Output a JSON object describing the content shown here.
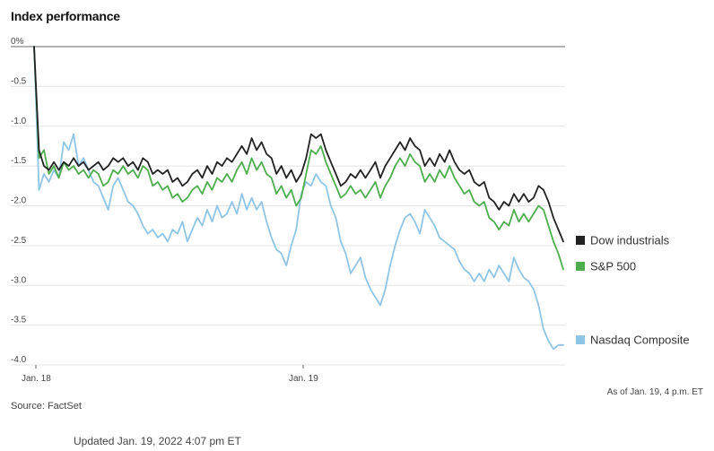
{
  "page": {
    "source": "Source: FactSet",
    "as_of": "As of Jan. 19, 4 p.m. ET",
    "updated": "Updated Jan. 19, 2022 4:07 pm ET"
  },
  "chart_data": {
    "type": "line",
    "title": "Index performance",
    "xlabel": "",
    "ylabel": "",
    "x_ticks": [
      "Jan. 18",
      "Jan. 19"
    ],
    "y_ticks": [
      "0%",
      "-0.5",
      "-1.0",
      "-1.5",
      "-2.0",
      "-2.5",
      "-3.0",
      "-3.5",
      "-4.0"
    ],
    "ylim": [
      -4.0,
      0
    ],
    "grid": true,
    "legend": "right, at line ends",
    "series": [
      {
        "name": "Dow industrials",
        "color": "#222222",
        "values": [
          0,
          -1.3,
          -1.5,
          -1.55,
          -1.45,
          -1.55,
          -1.45,
          -1.5,
          -1.4,
          -1.5,
          -1.45,
          -1.55,
          -1.5,
          -1.45,
          -1.55,
          -1.5,
          -1.4,
          -1.45,
          -1.4,
          -1.5,
          -1.45,
          -1.55,
          -1.4,
          -1.45,
          -1.6,
          -1.55,
          -1.6,
          -1.55,
          -1.7,
          -1.65,
          -1.75,
          -1.7,
          -1.6,
          -1.55,
          -1.65,
          -1.5,
          -1.6,
          -1.45,
          -1.5,
          -1.4,
          -1.45,
          -1.35,
          -1.25,
          -1.35,
          -1.15,
          -1.3,
          -1.2,
          -1.35,
          -1.4,
          -1.6,
          -1.5,
          -1.65,
          -1.55,
          -1.7,
          -1.6,
          -1.4,
          -1.1,
          -1.15,
          -1.1,
          -1.3,
          -1.45,
          -1.6,
          -1.75,
          -1.7,
          -1.6,
          -1.65,
          -1.55,
          -1.65,
          -1.55,
          -1.45,
          -1.65,
          -1.5,
          -1.4,
          -1.3,
          -1.2,
          -1.3,
          -1.15,
          -1.25,
          -1.3,
          -1.5,
          -1.4,
          -1.5,
          -1.35,
          -1.45,
          -1.3,
          -1.45,
          -1.55,
          -1.6,
          -1.55,
          -1.7,
          -1.75,
          -1.7,
          -1.9,
          -1.95,
          -2.05,
          -1.95,
          -2.0,
          -1.85,
          -1.95,
          -1.85,
          -1.95,
          -1.9,
          -1.75,
          -1.8,
          -1.95,
          -2.15,
          -2.3,
          -2.45
        ]
      },
      {
        "name": "S&P 500",
        "color": "#4cae4c",
        "values": [
          0,
          -1.4,
          -1.3,
          -1.6,
          -1.5,
          -1.65,
          -1.45,
          -1.55,
          -1.5,
          -1.6,
          -1.55,
          -1.65,
          -1.55,
          -1.6,
          -1.75,
          -1.7,
          -1.55,
          -1.6,
          -1.5,
          -1.6,
          -1.55,
          -1.65,
          -1.5,
          -1.55,
          -1.75,
          -1.7,
          -1.8,
          -1.75,
          -1.9,
          -1.85,
          -1.95,
          -1.9,
          -1.8,
          -1.75,
          -1.85,
          -1.7,
          -1.8,
          -1.65,
          -1.7,
          -1.6,
          -1.7,
          -1.55,
          -1.45,
          -1.6,
          -1.4,
          -1.55,
          -1.45,
          -1.6,
          -1.65,
          -1.85,
          -1.75,
          -1.9,
          -1.8,
          -2.0,
          -1.9,
          -1.6,
          -1.3,
          -1.35,
          -1.25,
          -1.45,
          -1.6,
          -1.75,
          -1.9,
          -1.85,
          -1.75,
          -1.85,
          -1.8,
          -1.9,
          -1.8,
          -1.7,
          -1.9,
          -1.75,
          -1.65,
          -1.5,
          -1.4,
          -1.5,
          -1.35,
          -1.45,
          -1.5,
          -1.7,
          -1.6,
          -1.7,
          -1.55,
          -1.65,
          -1.5,
          -1.65,
          -1.75,
          -1.85,
          -1.8,
          -1.95,
          -2.0,
          -1.95,
          -2.15,
          -2.2,
          -2.3,
          -2.2,
          -2.25,
          -2.05,
          -2.2,
          -2.1,
          -2.2,
          -2.1,
          -2.0,
          -2.05,
          -2.25,
          -2.45,
          -2.6,
          -2.8
        ]
      },
      {
        "name": "Nasdaq Composite",
        "color": "#8ec5e6",
        "values": [
          0,
          -1.8,
          -1.6,
          -1.7,
          -1.55,
          -1.65,
          -1.2,
          -1.3,
          -1.1,
          -1.5,
          -1.4,
          -1.55,
          -1.7,
          -1.75,
          -1.9,
          -2.05,
          -1.75,
          -1.65,
          -1.8,
          -1.95,
          -2.0,
          -2.1,
          -2.25,
          -2.35,
          -2.3,
          -2.4,
          -2.35,
          -2.45,
          -2.3,
          -2.35,
          -2.2,
          -2.45,
          -2.3,
          -2.15,
          -2.25,
          -2.05,
          -2.2,
          -2.0,
          -2.15,
          -2.1,
          -1.95,
          -2.1,
          -1.85,
          -2.05,
          -1.9,
          -2.05,
          -1.95,
          -2.2,
          -2.4,
          -2.55,
          -2.6,
          -2.75,
          -2.5,
          -2.3,
          -1.85,
          -1.7,
          -1.75,
          -1.6,
          -1.7,
          -1.75,
          -2.0,
          -2.15,
          -2.45,
          -2.6,
          -2.85,
          -2.75,
          -2.65,
          -2.9,
          -3.05,
          -3.15,
          -3.25,
          -3.05,
          -2.75,
          -2.5,
          -2.3,
          -2.15,
          -2.1,
          -2.2,
          -2.35,
          -2.05,
          -2.15,
          -2.25,
          -2.4,
          -2.45,
          -2.5,
          -2.55,
          -2.7,
          -2.8,
          -2.85,
          -2.95,
          -2.85,
          -2.95,
          -2.8,
          -2.9,
          -2.75,
          -2.85,
          -2.95,
          -2.65,
          -2.8,
          -2.9,
          -2.95,
          -3.05,
          -3.25,
          -3.55,
          -3.7,
          -3.8,
          -3.75,
          -3.75
        ]
      }
    ]
  }
}
